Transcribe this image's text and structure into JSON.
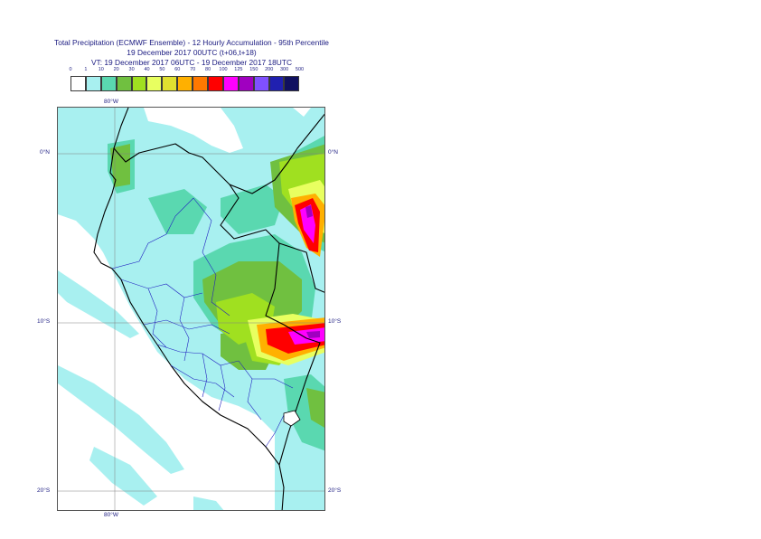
{
  "title": {
    "line1": "Total Precipitation (ECMWF Ensemble) - 12 Hourly Accumulation - 95th Percentile",
    "line2": "19 December 2017 00UTC (t+06,t+18)",
    "line3": "VT: 19 December 2017 06UTC - 19 December 2017 18UTC"
  },
  "legend": {
    "thresholds": [
      "0",
      "1",
      "10",
      "20",
      "30",
      "40",
      "50",
      "60",
      "70",
      "80",
      "100",
      "125",
      "150",
      "200",
      "300",
      "500"
    ],
    "colors": [
      "#ffffff",
      "#a8f0f0",
      "#5ad8b0",
      "#70c040",
      "#a0e020",
      "#e8ff60",
      "#e0e030",
      "#ffb000",
      "#ff7800",
      "#ff0000",
      "#ff00ff",
      "#a000c0",
      "#8050ff",
      "#2020b0",
      "#101060"
    ]
  },
  "axis": {
    "lon_top": "80°W",
    "lon_bottom": "80°W",
    "lat_0_left": "0°N",
    "lat_0_right": "0°N",
    "lat_10_left": "10°S",
    "lat_10_right": "10°S",
    "lat_20_left": "20°S",
    "lat_20_right": "20°S"
  },
  "map": {
    "lon_range": [
      "83°W",
      "67°W"
    ],
    "lat_range": [
      "4°N",
      "20°S"
    ],
    "gridlines": true
  }
}
